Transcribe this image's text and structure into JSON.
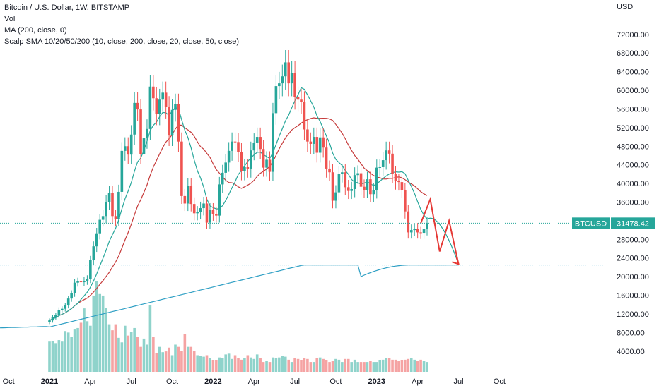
{
  "legend": {
    "title": "Bitcoin / U.S. Dollar, 1W, BITSTAMP",
    "vol": "Vol",
    "ma": "MA (200, close, 0)",
    "scalp": "Scalp SMA 10/20/50/200 (10, close, 200, close, 20, close, 50, close)"
  },
  "chart_data": {
    "type": "candlestick",
    "currency_label": "USD",
    "y_ticks": [
      "72000.00",
      "68000.00",
      "64000.00",
      "60000.00",
      "56000.00",
      "52000.00",
      "48000.00",
      "44000.00",
      "40000.00",
      "36000.00",
      "32000.00",
      "28000.00",
      "24000.00",
      "20000.00",
      "16000.00",
      "12000.00",
      "8000.00",
      "4000.00"
    ],
    "ylim": [
      2600,
      75000
    ],
    "x_ticks": [
      {
        "label": "Oct",
        "t": -13,
        "bold": false
      },
      {
        "label": "2021",
        "t": 0,
        "bold": true
      },
      {
        "label": "Apr",
        "t": 13,
        "bold": false
      },
      {
        "label": "Jul",
        "t": 26,
        "bold": false
      },
      {
        "label": "Oct",
        "t": 39,
        "bold": false
      },
      {
        "label": "2022",
        "t": 52,
        "bold": true
      },
      {
        "label": "Apr",
        "t": 65,
        "bold": false
      },
      {
        "label": "Jul",
        "t": 78,
        "bold": false
      },
      {
        "label": "Oct",
        "t": 91,
        "bold": false
      },
      {
        "label": "2023",
        "t": 104,
        "bold": true
      },
      {
        "label": "Apr",
        "t": 117,
        "bold": false
      },
      {
        "label": "Jul",
        "t": 130,
        "bold": false
      },
      {
        "label": "Oct",
        "t": 143,
        "bold": false
      }
    ],
    "current_price": {
      "symbol": "BTCUSD",
      "value": "31478.42",
      "y": 31478.42
    },
    "support_level": 22500,
    "closes": [
      10600,
      11300,
      11700,
      12900,
      13100,
      13800,
      15300,
      16400,
      18700,
      19000,
      18800,
      19100,
      19500,
      23500,
      26500,
      29300,
      32200,
      33000,
      36000,
      38000,
      33000,
      32300,
      38200,
      47000,
      48000,
      46200,
      50500,
      57300,
      55900,
      46300,
      49700,
      51700,
      60800,
      58300,
      55000,
      58000,
      59500,
      56500,
      50300,
      55800,
      57000,
      49000,
      37300,
      35700,
      39500,
      35600,
      33600,
      33800,
      34700,
      35700,
      31600,
      34400,
      33500,
      33100,
      39800,
      42300,
      44500,
      47000,
      49000,
      48900,
      46800,
      42600,
      43500,
      43200,
      47100,
      48800,
      50000,
      47400,
      43400,
      45100,
      42500,
      55100,
      60900,
      61500,
      63000,
      66000,
      61500,
      63700,
      58500,
      58000,
      57500,
      51600,
      49000,
      48500,
      50000,
      46600,
      49900,
      47700,
      43200,
      42400,
      36300,
      38100,
      42100,
      42400,
      39200,
      38400,
      38800,
      41800,
      42200,
      39300,
      38600,
      40900,
      37700,
      38500,
      43400,
      43500,
      45000,
      47100,
      46400,
      42000,
      40500,
      40300,
      38600,
      34000,
      29500,
      30000,
      30300,
      29500,
      29400,
      30200,
      31478
    ],
    "volumes": [
      4000,
      4100,
      3800,
      4200,
      4000,
      5400,
      5200,
      4600,
      5600,
      5800,
      6500,
      8400,
      6700,
      6100,
      10100,
      12000,
      10300,
      10100,
      8500,
      6300,
      5500,
      6300,
      4500,
      3900,
      6100,
      4800,
      5300,
      5800,
      4600,
      3300,
      4400,
      3600,
      8800,
      4600,
      2500,
      3300,
      2600,
      2700,
      3200,
      2200,
      3600,
      3300,
      2800,
      5000,
      3300,
      3300,
      2800,
      2200,
      2100,
      2000,
      2200,
      1800,
      1500,
      1500,
      1900,
      1800,
      2300,
      2400,
      1700,
      2200,
      1800,
      1600,
      1800,
      2200,
      1900,
      1700,
      2300,
      1800,
      1300,
      1400,
      1300,
      1900,
      1800,
      1900,
      2100,
      2000,
      1600,
      1300,
      1800,
      1700,
      1500,
      1800,
      1700,
      1300,
      1300,
      1800,
      1900,
      1700,
      1500,
      1300,
      1400,
      1700,
      1600,
      1300,
      1700,
      1700,
      1300,
      1600,
      1300,
      1300,
      1300,
      1300,
      1400,
      1300,
      1300,
      1500,
      1600,
      1800,
      1800,
      1600,
      1600,
      1400,
      1500,
      1600,
      1700,
      1800,
      1600,
      1400,
      1600,
      1400,
      1300
    ],
    "projection": [
      [
        118,
        31478
      ],
      [
        121,
        36600
      ],
      [
        124,
        25400
      ],
      [
        127,
        32000
      ],
      [
        130,
        22700
      ]
    ]
  }
}
